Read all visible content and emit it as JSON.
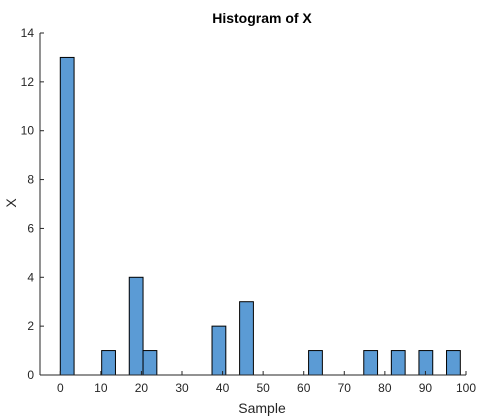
{
  "chart_data": {
    "type": "bar",
    "title": "Histogram of X",
    "xlabel": "Sample",
    "ylabel": "X",
    "xlim": [
      -5,
      100
    ],
    "ylim": [
      0,
      14
    ],
    "xticks": [
      0,
      10,
      20,
      30,
      40,
      50,
      60,
      70,
      80,
      90,
      100
    ],
    "yticks": [
      0,
      2,
      4,
      6,
      8,
      10,
      12,
      14
    ],
    "bin_width": 3.4,
    "bars": [
      {
        "center": 1.7,
        "value": 13
      },
      {
        "center": 11.9,
        "value": 1
      },
      {
        "center": 18.7,
        "value": 4
      },
      {
        "center": 22.1,
        "value": 1
      },
      {
        "center": 39.1,
        "value": 2
      },
      {
        "center": 45.9,
        "value": 3
      },
      {
        "center": 62.9,
        "value": 1
      },
      {
        "center": 76.5,
        "value": 1
      },
      {
        "center": 83.3,
        "value": 1
      },
      {
        "center": 90.1,
        "value": 1
      },
      {
        "center": 96.9,
        "value": 1
      }
    ],
    "colors": {
      "bar_fill": "#5b9bd5",
      "bar_edge": "#000000",
      "axis": "#262626"
    },
    "grid": false,
    "box": false
  }
}
